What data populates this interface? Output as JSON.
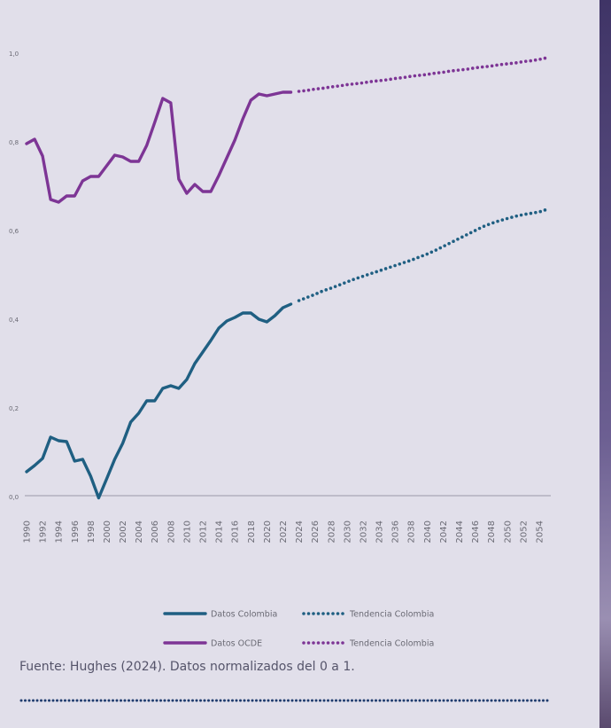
{
  "chart_data": {
    "type": "line",
    "x": [
      1990,
      1991,
      1992,
      1993,
      1994,
      1995,
      1996,
      1997,
      1998,
      1999,
      2000,
      2001,
      2002,
      2003,
      2004,
      2005,
      2006,
      2007,
      2008,
      2009,
      2010,
      2011,
      2012,
      2013,
      2014,
      2015,
      2016,
      2017,
      2018,
      2019,
      2020,
      2021,
      2022,
      2023,
      2024,
      2025,
      2026,
      2027,
      2028,
      2029,
      2030,
      2031,
      2032,
      2033,
      2034,
      2035,
      2036,
      2037,
      2038,
      2039,
      2040,
      2041,
      2042,
      2043,
      2044,
      2045,
      2046,
      2047,
      2048,
      2049,
      2050,
      2051,
      2052,
      2053,
      2054,
      2055
    ],
    "xlim": [
      1990,
      2055
    ],
    "xticks": [
      1990,
      1992,
      1994,
      1996,
      1998,
      2000,
      2002,
      2004,
      2006,
      2008,
      2010,
      2012,
      2014,
      2016,
      2018,
      2020,
      2022,
      2024,
      2026,
      2028,
      2030,
      2032,
      2034,
      2036,
      2038,
      2040,
      2042,
      2044,
      2046,
      2048,
      2050,
      2052,
      2054
    ],
    "ylim": [
      0,
      1
    ],
    "yticks": [
      {
        "value": 0,
        "label": "0,0"
      },
      {
        "value": 0.2,
        "label": "0,2"
      },
      {
        "value": 0.4,
        "label": "0,4"
      },
      {
        "value": 0.6,
        "label": "0,6"
      },
      {
        "value": 0.8,
        "label": "0,8"
      },
      {
        "value": 1,
        "label": "1,0"
      }
    ],
    "grid": false,
    "series": [
      {
        "name": "Datos Colombia",
        "color": "#1f5f82",
        "style": "solid",
        "values": [
          0.054,
          0.068,
          0.084,
          0.132,
          0.124,
          0.122,
          0.078,
          0.082,
          0.044,
          -0.005,
          0.038,
          0.082,
          0.118,
          0.166,
          0.186,
          0.214,
          0.214,
          0.242,
          0.248,
          0.242,
          0.262,
          0.298,
          0.324,
          0.35,
          0.378,
          0.394,
          0.402,
          0.412,
          0.412,
          0.398,
          0.392,
          0.406,
          0.424,
          0.432,
          null,
          null,
          null,
          null,
          null,
          null,
          null,
          null,
          null,
          null,
          null,
          null,
          null,
          null,
          null,
          null,
          null,
          null,
          null,
          null,
          null,
          null,
          null,
          null,
          null,
          null,
          null,
          null,
          null,
          null,
          null,
          null
        ]
      },
      {
        "name": "Tendencia Colombia",
        "color": "#1f5f82",
        "style": "dotted",
        "values": [
          null,
          null,
          null,
          null,
          null,
          null,
          null,
          null,
          null,
          null,
          null,
          null,
          null,
          null,
          null,
          null,
          null,
          null,
          null,
          null,
          null,
          null,
          null,
          null,
          null,
          null,
          null,
          null,
          null,
          null,
          null,
          null,
          null,
          null,
          0.44,
          0.447,
          0.454,
          0.462,
          0.468,
          0.475,
          0.482,
          0.489,
          0.495,
          0.501,
          0.507,
          0.513,
          0.519,
          0.525,
          0.531,
          0.538,
          0.545,
          0.553,
          0.562,
          0.571,
          0.58,
          0.589,
          0.598,
          0.607,
          0.614,
          0.62,
          0.625,
          0.63,
          0.634,
          0.637,
          0.64,
          0.646
        ]
      },
      {
        "name": "Datos OCDE",
        "color": "#7d3595",
        "style": "solid",
        "values": [
          0.794,
          0.804,
          0.766,
          0.668,
          0.662,
          0.676,
          0.676,
          0.71,
          0.72,
          0.72,
          0.744,
          0.768,
          0.764,
          0.754,
          0.754,
          0.79,
          0.842,
          0.896,
          0.886,
          0.714,
          0.682,
          0.702,
          0.686,
          0.686,
          0.722,
          0.762,
          0.802,
          0.85,
          0.892,
          0.906,
          0.902,
          0.906,
          0.91,
          0.91,
          null,
          null,
          null,
          null,
          null,
          null,
          null,
          null,
          null,
          null,
          null,
          null,
          null,
          null,
          null,
          null,
          null,
          null,
          null,
          null,
          null,
          null,
          null,
          null,
          null,
          null,
          null,
          null,
          null,
          null,
          null,
          null
        ]
      },
      {
        "name": "Tendencia Colombia",
        "color": "#7d3595",
        "style": "dotted",
        "values": [
          null,
          null,
          null,
          null,
          null,
          null,
          null,
          null,
          null,
          null,
          null,
          null,
          null,
          null,
          null,
          null,
          null,
          null,
          null,
          null,
          null,
          null,
          null,
          null,
          null,
          null,
          null,
          null,
          null,
          null,
          null,
          null,
          null,
          null,
          0.912,
          0.914,
          0.917,
          0.919,
          0.922,
          0.924,
          0.927,
          0.929,
          0.931,
          0.934,
          0.936,
          0.938,
          0.941,
          0.943,
          0.946,
          0.948,
          0.95,
          0.953,
          0.955,
          0.958,
          0.96,
          0.962,
          0.965,
          0.967,
          0.969,
          0.972,
          0.974,
          0.976,
          0.979,
          0.981,
          0.984,
          0.988
        ]
      }
    ],
    "source": "Fuente: Hughes (2024). Datos normalizados del 0 a 1."
  }
}
